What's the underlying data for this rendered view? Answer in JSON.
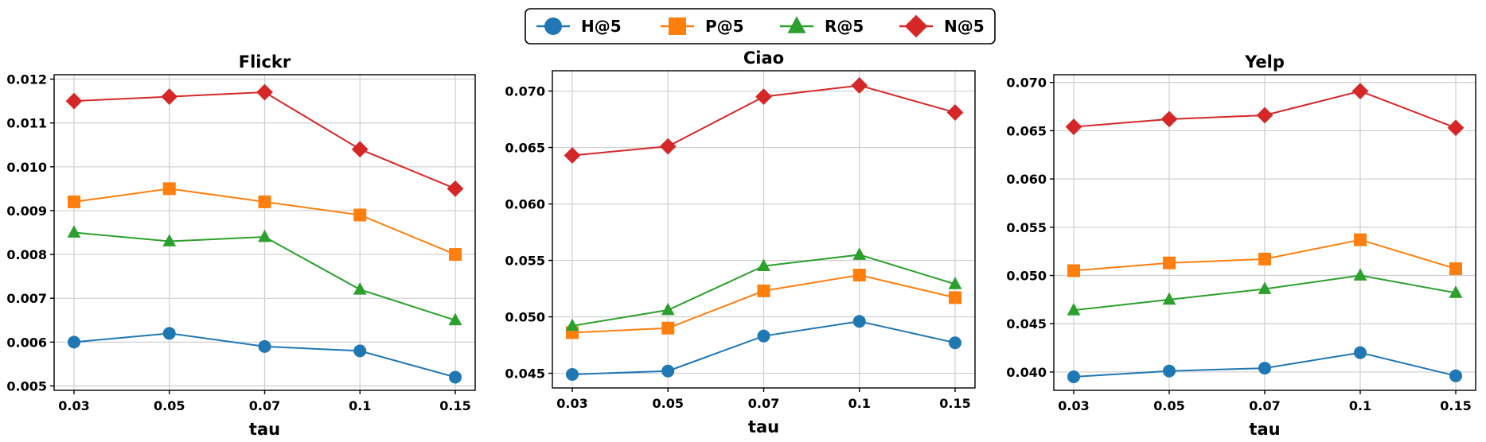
{
  "legend": [
    {
      "name": "H@5",
      "color": "#1f77b4",
      "marker": "circle"
    },
    {
      "name": "P@5",
      "color": "#ff7f0e",
      "marker": "square"
    },
    {
      "name": "R@5",
      "color": "#2ca02c",
      "marker": "triangle"
    },
    {
      "name": "N@5",
      "color": "#d62728",
      "marker": "diamond"
    }
  ],
  "chart_data": [
    {
      "type": "line",
      "title": "Flickr",
      "xlabel": "tau",
      "ylabel": "",
      "categories": [
        "0.03",
        "0.05",
        "0.07",
        "0.1",
        "0.15"
      ],
      "ylim": [
        0.0049,
        0.0121
      ],
      "yticks": [
        0.005,
        0.006,
        0.007,
        0.008,
        0.009,
        0.01,
        0.011,
        0.012
      ],
      "ytick_labels": [
        "0.005",
        "0.006",
        "0.007",
        "0.008",
        "0.009",
        "0.010",
        "0.011",
        "0.012"
      ],
      "series": [
        {
          "name": "H@5",
          "values": [
            0.006,
            0.0062,
            0.0059,
            0.0058,
            0.0052
          ]
        },
        {
          "name": "P@5",
          "values": [
            0.0092,
            0.0095,
            0.0092,
            0.0089,
            0.008
          ]
        },
        {
          "name": "R@5",
          "values": [
            0.0085,
            0.0083,
            0.0084,
            0.0072,
            0.0065
          ]
        },
        {
          "name": "N@5",
          "values": [
            0.0115,
            0.0116,
            0.0117,
            0.0104,
            0.0095
          ]
        }
      ]
    },
    {
      "type": "line",
      "title": "Ciao",
      "xlabel": "tau",
      "ylabel": "",
      "categories": [
        "0.03",
        "0.05",
        "0.07",
        "0.1",
        "0.15"
      ],
      "ylim": [
        0.0437,
        0.0718
      ],
      "yticks": [
        0.045,
        0.05,
        0.055,
        0.06,
        0.065,
        0.07
      ],
      "ytick_labels": [
        "0.045",
        "0.050",
        "0.055",
        "0.060",
        "0.065",
        "0.070"
      ],
      "series": [
        {
          "name": "H@5",
          "values": [
            0.0449,
            0.0452,
            0.0483,
            0.0496,
            0.0477
          ]
        },
        {
          "name": "P@5",
          "values": [
            0.0486,
            0.049,
            0.0523,
            0.0537,
            0.0517
          ]
        },
        {
          "name": "R@5",
          "values": [
            0.0492,
            0.0506,
            0.0545,
            0.0555,
            0.0529
          ]
        },
        {
          "name": "N@5",
          "values": [
            0.0643,
            0.0651,
            0.0695,
            0.0705,
            0.0681
          ]
        }
      ]
    },
    {
      "type": "line",
      "title": "Yelp",
      "xlabel": "tau",
      "ylabel": "",
      "categories": [
        "0.03",
        "0.05",
        "0.07",
        "0.1",
        "0.15"
      ],
      "ylim": [
        0.0381,
        0.0708
      ],
      "yticks": [
        0.04,
        0.045,
        0.05,
        0.055,
        0.06,
        0.065,
        0.07
      ],
      "ytick_labels": [
        "0.040",
        "0.045",
        "0.050",
        "0.055",
        "0.060",
        "0.065",
        "0.070"
      ],
      "series": [
        {
          "name": "H@5",
          "values": [
            0.0395,
            0.0401,
            0.0404,
            0.042,
            0.0396
          ]
        },
        {
          "name": "P@5",
          "values": [
            0.0505,
            0.0513,
            0.0517,
            0.0537,
            0.0507
          ]
        },
        {
          "name": "R@5",
          "values": [
            0.0464,
            0.0475,
            0.0486,
            0.05,
            0.0482
          ]
        },
        {
          "name": "N@5",
          "values": [
            0.0654,
            0.0662,
            0.0666,
            0.0691,
            0.0653
          ]
        }
      ]
    }
  ]
}
